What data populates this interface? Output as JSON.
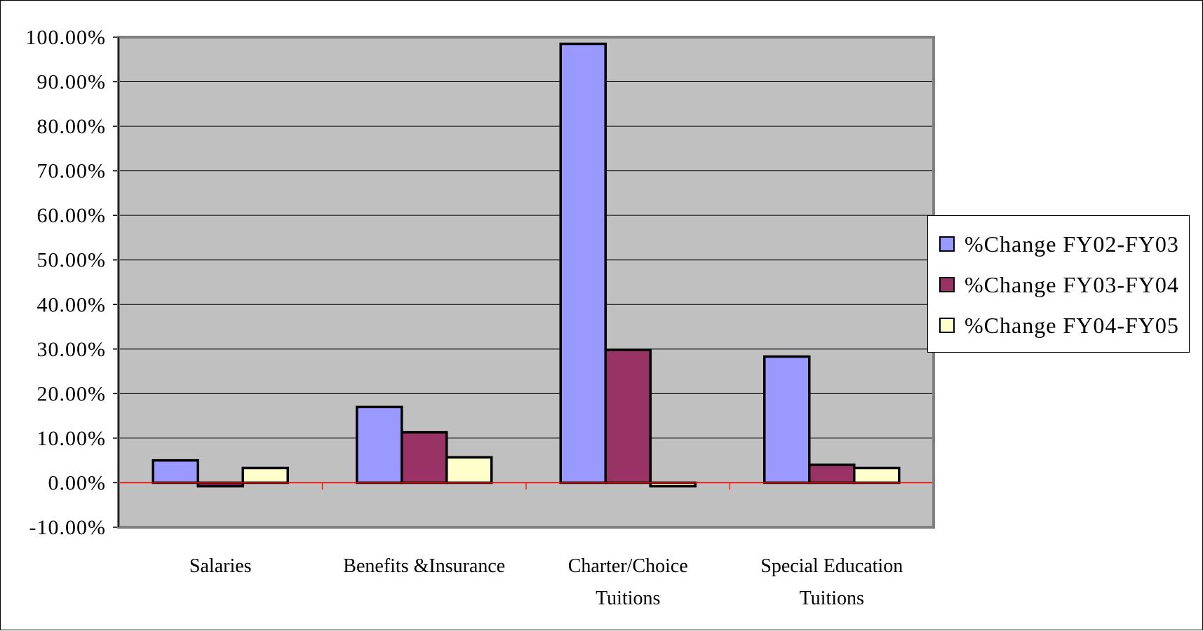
{
  "chart_data": {
    "type": "bar",
    "title": "",
    "xlabel": "",
    "ylabel": "",
    "categories": [
      "Salaries",
      "Benefits &Insurance",
      "Charter/Choice Tuitions",
      "Special Education Tuitions"
    ],
    "category_lines": [
      [
        "Salaries"
      ],
      [
        "Benefits &Insurance"
      ],
      [
        "Charter/Choice",
        "Tuitions"
      ],
      [
        "Special Education",
        "Tuitions"
      ]
    ],
    "series": [
      {
        "name": "%Change FY02-FY03",
        "color": "#9999FF",
        "values": [
          5.0,
          17.0,
          98.5,
          28.3
        ]
      },
      {
        "name": "%Change FY03-FY04",
        "color": "#993366",
        "values": [
          -0.8,
          11.3,
          29.8,
          4.0
        ]
      },
      {
        "name": "%Change FY04-FY05",
        "color": "#FFFFCC",
        "values": [
          3.3,
          5.7,
          -0.8,
          3.3
        ]
      }
    ],
    "ylim": [
      -10,
      100
    ],
    "yticks": [
      -10,
      0,
      10,
      20,
      30,
      40,
      50,
      60,
      70,
      80,
      90,
      100
    ],
    "ytick_labels": [
      "-10.00%",
      "0.00%",
      "10.00%",
      "20.00%",
      "30.00%",
      "40.00%",
      "50.00%",
      "60.00%",
      "70.00%",
      "80.00%",
      "90.00%",
      "100.00%"
    ],
    "grid": true,
    "plot_background": "#C0C0C0",
    "zero_line_color": "#FF0000",
    "legend_position": "right"
  }
}
